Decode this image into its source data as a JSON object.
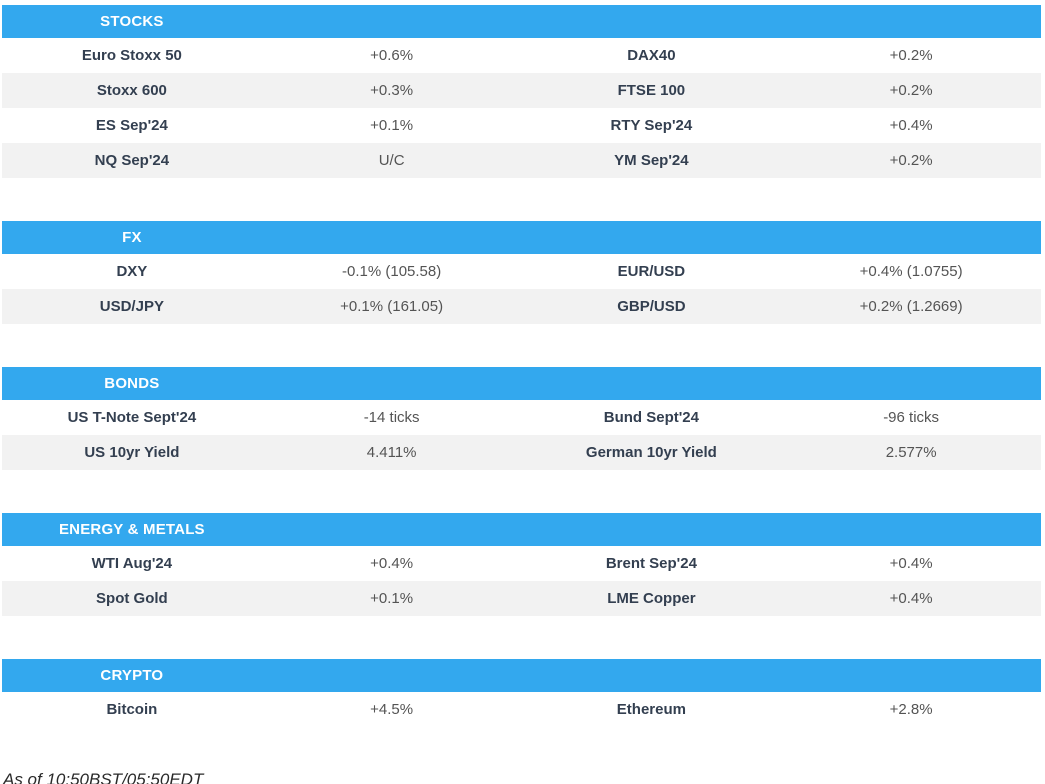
{
  "colors": {
    "header_bg": "#33a8ee",
    "header_text": "#ffffff",
    "row_alt_bg": "#f2f2f2",
    "label_text": "#333f50",
    "value_text": "#545454",
    "footer_text": "#2a2a2a"
  },
  "sections": [
    {
      "title": "STOCKS",
      "rows": [
        {
          "cells": [
            "Euro Stoxx 50",
            "+0.6%",
            "DAX40",
            "+0.2%"
          ]
        },
        {
          "cells": [
            "Stoxx 600",
            "+0.3%",
            "FTSE 100",
            "+0.2%"
          ]
        },
        {
          "cells": [
            "ES Sep'24",
            "+0.1%",
            "RTY Sep'24",
            "+0.4%"
          ]
        },
        {
          "cells": [
            "NQ Sep'24",
            "U/C",
            "YM Sep'24",
            "+0.2%"
          ]
        }
      ]
    },
    {
      "title": "FX",
      "rows": [
        {
          "cells": [
            "DXY",
            "-0.1% (105.58)",
            "EUR/USD",
            "+0.4% (1.0755)"
          ]
        },
        {
          "cells": [
            "USD/JPY",
            "+0.1% (161.05)",
            "GBP/USD",
            "+0.2% (1.2669)"
          ]
        }
      ]
    },
    {
      "title": "BONDS",
      "rows": [
        {
          "cells": [
            "US T-Note Sept'24",
            "-14 ticks",
            "Bund Sept'24",
            "-96 ticks"
          ]
        },
        {
          "cells": [
            "US 10yr Yield",
            "4.411%",
            "German 10yr Yield",
            "2.577%"
          ]
        }
      ]
    },
    {
      "title": "ENERGY & METALS",
      "rows": [
        {
          "cells": [
            "WTI Aug'24",
            "+0.4%",
            "Brent Sep'24",
            "+0.4%"
          ]
        },
        {
          "cells": [
            "Spot Gold",
            "+0.1%",
            "LME Copper",
            "+0.4%"
          ]
        }
      ]
    },
    {
      "title": "CRYPTO",
      "rows": [
        {
          "cells": [
            "Bitcoin",
            "+4.5%",
            "Ethereum",
            "+2.8%"
          ]
        }
      ]
    }
  ],
  "footer": {
    "as_of": "As of 10:50BST/05:50EDT"
  }
}
